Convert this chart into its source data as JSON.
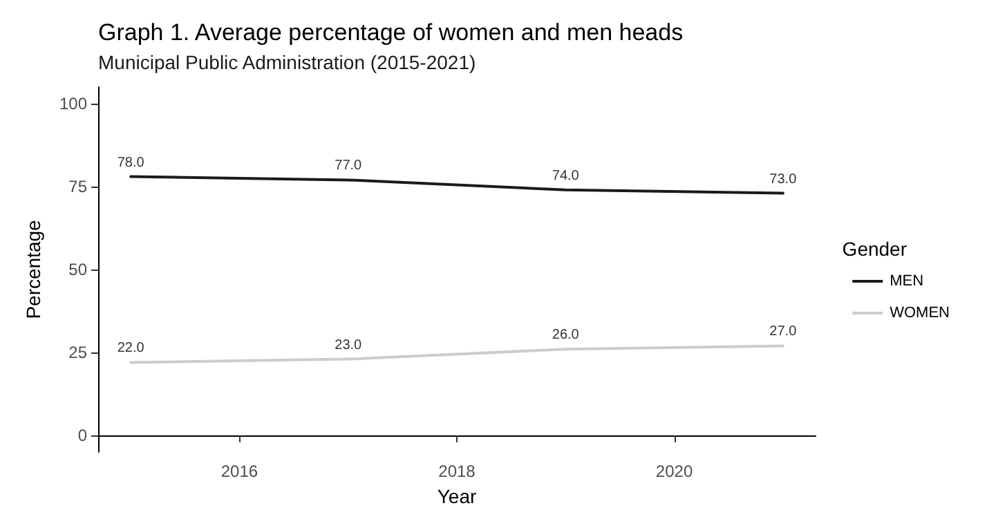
{
  "chart_data": {
    "type": "line",
    "title": "Graph 1. Average percentage of women and men heads",
    "subtitle": "Municipal Public Administration (2015-2021)",
    "xlabel": "Year",
    "ylabel": "Percentage",
    "legend_title": "Gender",
    "x": [
      2015,
      2017,
      2019,
      2021
    ],
    "series": [
      {
        "name": "MEN",
        "color": "#1a1a1a",
        "values": [
          78,
          77,
          74,
          73
        ],
        "value_labels": [
          "78.0",
          "77.0",
          "74.0",
          "73.0"
        ]
      },
      {
        "name": "WOMEN",
        "color": "#cccccc",
        "values": [
          22,
          23,
          26,
          27
        ],
        "value_labels": [
          "22.0",
          "23.0",
          "26.0",
          "27.0"
        ]
      }
    ],
    "xlim": [
      2014.7,
      2021.3
    ],
    "xticks": [
      2016,
      2018,
      2020
    ],
    "ylim": [
      -5,
      105
    ],
    "yticks": [
      0,
      25,
      50,
      75,
      100
    ],
    "grid": false,
    "legend": "right",
    "marker": "none",
    "line_style": "solid"
  }
}
